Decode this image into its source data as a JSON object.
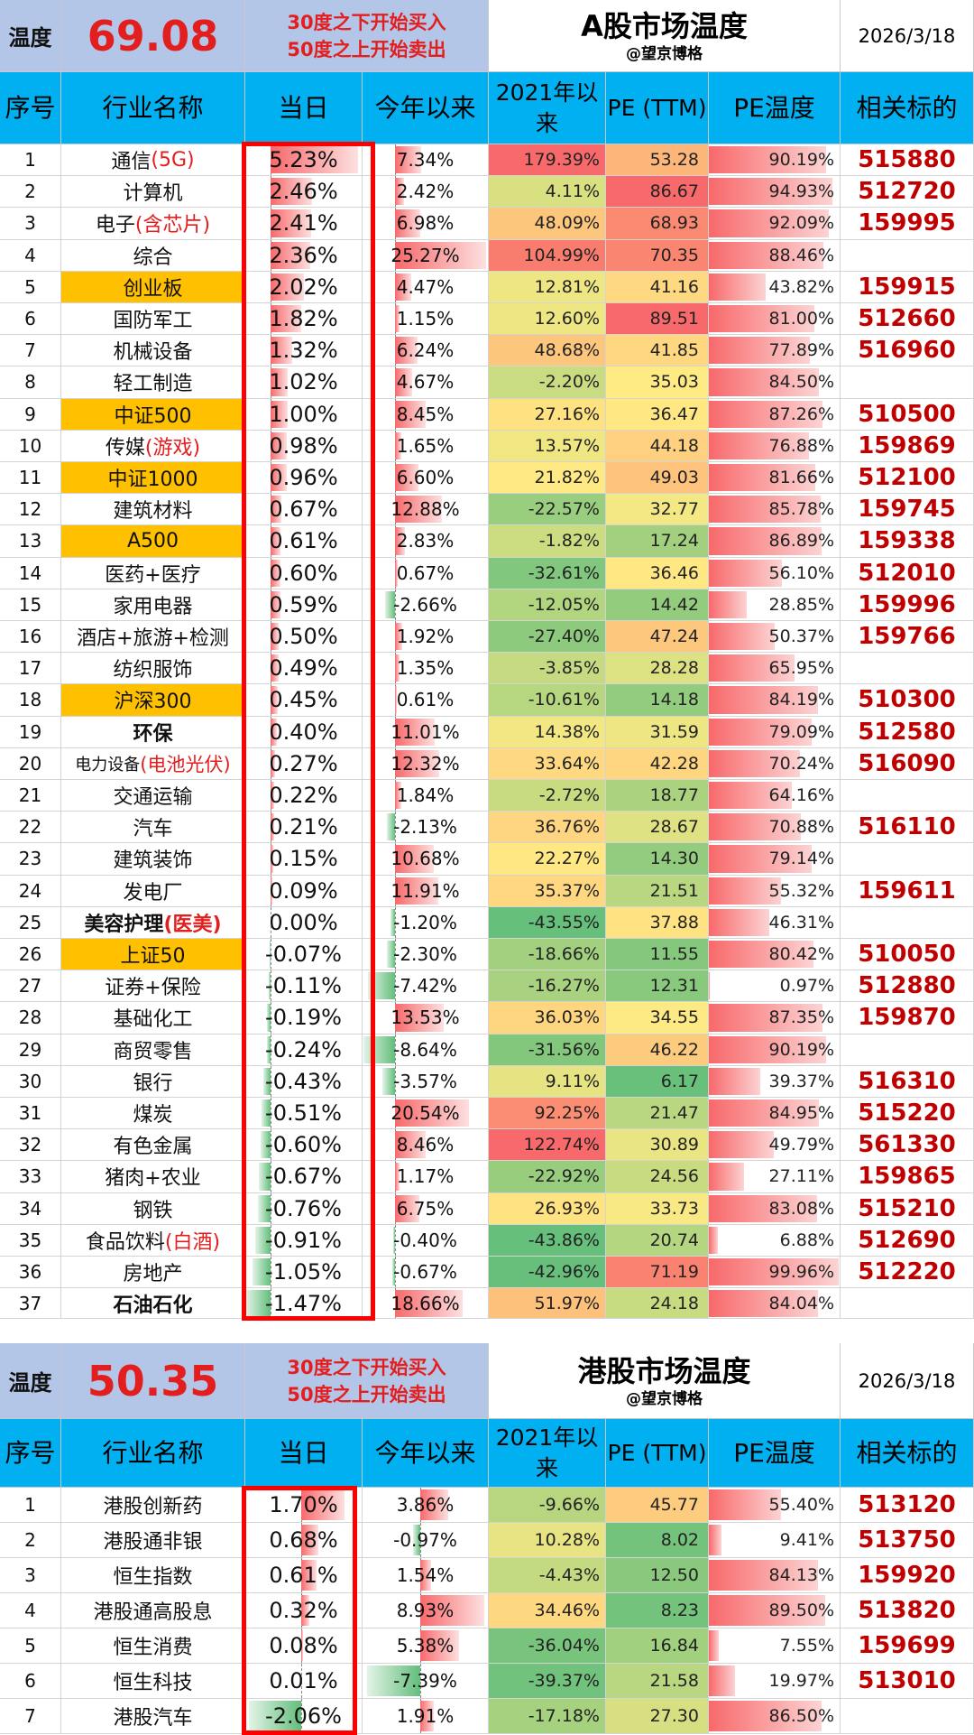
{
  "a_share": {
    "temp_label": "温度",
    "temp_value": "69.08",
    "rule_line1": "30度之下开始买入",
    "rule_line2": "50度之上开始卖出",
    "title": "A股市场温度",
    "subtitle": "@望京博格",
    "date": "2026/3/18",
    "columns": [
      "序号",
      "行业名称",
      "当日",
      "今年以来",
      "2021年以来",
      "PE (TTM)",
      "PE温度",
      "相关标的"
    ],
    "rows": [
      {
        "idx": "1",
        "name": "通信",
        "suffix": "(5G)",
        "hl": false,
        "bold": false,
        "today": "5.23%",
        "t": 5.23,
        "ytd": "7.34%",
        "y": 7.34,
        "s2021": "179.39%",
        "pe": "53.28",
        "pet": "90.19%",
        "p": 90.19,
        "code": "515880"
      },
      {
        "idx": "2",
        "name": "计算机",
        "suffix": "",
        "hl": false,
        "bold": false,
        "today": "2.46%",
        "t": 2.46,
        "ytd": "2.42%",
        "y": 2.42,
        "s2021": "4.11%",
        "pe": "86.67",
        "pet": "94.93%",
        "p": 94.93,
        "code": "512720"
      },
      {
        "idx": "3",
        "name": "电子",
        "suffix": "(含芯片)",
        "hl": false,
        "bold": false,
        "today": "2.41%",
        "t": 2.41,
        "ytd": "6.98%",
        "y": 6.98,
        "s2021": "48.09%",
        "pe": "68.93",
        "pet": "92.09%",
        "p": 92.09,
        "code": "159995"
      },
      {
        "idx": "4",
        "name": "综合",
        "suffix": "",
        "hl": false,
        "bold": false,
        "today": "2.36%",
        "t": 2.36,
        "ytd": "25.27%",
        "y": 25.27,
        "s2021": "104.99%",
        "pe": "70.35",
        "pet": "88.46%",
        "p": 88.46,
        "code": ""
      },
      {
        "idx": "5",
        "name": "创业板",
        "suffix": "",
        "hl": true,
        "bold": false,
        "today": "2.02%",
        "t": 2.02,
        "ytd": "4.47%",
        "y": 4.47,
        "s2021": "12.81%",
        "pe": "41.16",
        "pet": "43.82%",
        "p": 43.82,
        "code": "159915"
      },
      {
        "idx": "6",
        "name": "国防军工",
        "suffix": "",
        "hl": false,
        "bold": false,
        "today": "1.82%",
        "t": 1.82,
        "ytd": "1.15%",
        "y": 1.15,
        "s2021": "12.60%",
        "pe": "89.51",
        "pet": "81.00%",
        "p": 81.0,
        "code": "512660"
      },
      {
        "idx": "7",
        "name": "机械设备",
        "suffix": "",
        "hl": false,
        "bold": false,
        "today": "1.32%",
        "t": 1.32,
        "ytd": "6.24%",
        "y": 6.24,
        "s2021": "48.68%",
        "pe": "41.85",
        "pet": "77.89%",
        "p": 77.89,
        "code": "516960"
      },
      {
        "idx": "8",
        "name": "轻工制造",
        "suffix": "",
        "hl": false,
        "bold": false,
        "today": "1.02%",
        "t": 1.02,
        "ytd": "4.67%",
        "y": 4.67,
        "s2021": "-2.20%",
        "pe": "35.03",
        "pet": "84.50%",
        "p": 84.5,
        "code": ""
      },
      {
        "idx": "9",
        "name": "中证500",
        "suffix": "",
        "hl": true,
        "bold": false,
        "today": "1.00%",
        "t": 1.0,
        "ytd": "8.45%",
        "y": 8.45,
        "s2021": "27.16%",
        "pe": "36.47",
        "pet": "87.26%",
        "p": 87.26,
        "code": "510500"
      },
      {
        "idx": "10",
        "name": "传媒",
        "suffix": "(游戏)",
        "hl": false,
        "bold": false,
        "today": "0.98%",
        "t": 0.98,
        "ytd": "1.65%",
        "y": 1.65,
        "s2021": "13.57%",
        "pe": "44.18",
        "pet": "76.88%",
        "p": 76.88,
        "code": "159869"
      },
      {
        "idx": "11",
        "name": "中证1000",
        "suffix": "",
        "hl": true,
        "bold": false,
        "today": "0.96%",
        "t": 0.96,
        "ytd": "6.60%",
        "y": 6.6,
        "s2021": "21.82%",
        "pe": "49.03",
        "pet": "81.66%",
        "p": 81.66,
        "code": "512100"
      },
      {
        "idx": "12",
        "name": "建筑材料",
        "suffix": "",
        "hl": false,
        "bold": false,
        "today": "0.67%",
        "t": 0.67,
        "ytd": "12.88%",
        "y": 12.88,
        "s2021": "-22.57%",
        "pe": "32.77",
        "pet": "85.78%",
        "p": 85.78,
        "code": "159745"
      },
      {
        "idx": "13",
        "name": "A500",
        "suffix": "",
        "hl": true,
        "bold": false,
        "today": "0.61%",
        "t": 0.61,
        "ytd": "2.83%",
        "y": 2.83,
        "s2021": "-1.82%",
        "pe": "17.24",
        "pet": "86.89%",
        "p": 86.89,
        "code": "159338"
      },
      {
        "idx": "14",
        "name": "医药+医疗",
        "suffix": "",
        "hl": false,
        "bold": false,
        "today": "0.60%",
        "t": 0.6,
        "ytd": "0.67%",
        "y": 0.67,
        "s2021": "-32.61%",
        "pe": "36.46",
        "pet": "56.10%",
        "p": 56.1,
        "code": "512010"
      },
      {
        "idx": "15",
        "name": "家用电器",
        "suffix": "",
        "hl": false,
        "bold": false,
        "today": "0.59%",
        "t": 0.59,
        "ytd": "-2.66%",
        "y": -2.66,
        "s2021": "-12.05%",
        "pe": "14.42",
        "pet": "28.85%",
        "p": 28.85,
        "code": "159996"
      },
      {
        "idx": "16",
        "name": "酒店+旅游+检测",
        "suffix": "",
        "hl": false,
        "bold": false,
        "today": "0.50%",
        "t": 0.5,
        "ytd": "1.92%",
        "y": 1.92,
        "s2021": "-27.40%",
        "pe": "47.24",
        "pet": "50.37%",
        "p": 50.37,
        "code": "159766"
      },
      {
        "idx": "17",
        "name": "纺织服饰",
        "suffix": "",
        "hl": false,
        "bold": false,
        "today": "0.49%",
        "t": 0.49,
        "ytd": "1.35%",
        "y": 1.35,
        "s2021": "-3.85%",
        "pe": "28.28",
        "pet": "65.95%",
        "p": 65.95,
        "code": ""
      },
      {
        "idx": "18",
        "name": "沪深300",
        "suffix": "",
        "hl": true,
        "bold": false,
        "today": "0.45%",
        "t": 0.45,
        "ytd": "0.61%",
        "y": 0.61,
        "s2021": "-10.61%",
        "pe": "14.18",
        "pet": "84.19%",
        "p": 84.19,
        "code": "510300"
      },
      {
        "idx": "19",
        "name": "环保",
        "suffix": "",
        "hl": false,
        "bold": true,
        "today": "0.40%",
        "t": 0.4,
        "ytd": "11.01%",
        "y": 11.01,
        "s2021": "14.38%",
        "pe": "31.59",
        "pet": "79.09%",
        "p": 79.09,
        "code": "512580"
      },
      {
        "idx": "20",
        "name": "电力设备",
        "suffix": "(电池光伏)",
        "hl": false,
        "bold": false,
        "small": true,
        "today": "0.27%",
        "t": 0.27,
        "ytd": "12.32%",
        "y": 12.32,
        "s2021": "33.64%",
        "pe": "42.28",
        "pet": "70.24%",
        "p": 70.24,
        "code": "516090"
      },
      {
        "idx": "21",
        "name": "交通运输",
        "suffix": "",
        "hl": false,
        "bold": false,
        "today": "0.22%",
        "t": 0.22,
        "ytd": "1.84%",
        "y": 1.84,
        "s2021": "-2.72%",
        "pe": "18.77",
        "pet": "64.16%",
        "p": 64.16,
        "code": ""
      },
      {
        "idx": "22",
        "name": "汽车",
        "suffix": "",
        "hl": false,
        "bold": false,
        "today": "0.21%",
        "t": 0.21,
        "ytd": "-2.13%",
        "y": -2.13,
        "s2021": "36.76%",
        "pe": "28.67",
        "pet": "70.88%",
        "p": 70.88,
        "code": "516110"
      },
      {
        "idx": "23",
        "name": "建筑装饰",
        "suffix": "",
        "hl": false,
        "bold": false,
        "today": "0.15%",
        "t": 0.15,
        "ytd": "10.68%",
        "y": 10.68,
        "s2021": "22.27%",
        "pe": "14.30",
        "pet": "79.14%",
        "p": 79.14,
        "code": ""
      },
      {
        "idx": "24",
        "name": "发电厂",
        "suffix": "",
        "hl": false,
        "bold": false,
        "today": "0.09%",
        "t": 0.09,
        "ytd": "11.91%",
        "y": 11.91,
        "s2021": "35.37%",
        "pe": "21.51",
        "pet": "55.32%",
        "p": 55.32,
        "code": "159611"
      },
      {
        "idx": "25",
        "name": "美容护理",
        "suffix": "(医美)",
        "hl": false,
        "bold": true,
        "today": "0.00%",
        "t": 0.0,
        "ytd": "-1.20%",
        "y": -1.2,
        "s2021": "-43.55%",
        "pe": "37.88",
        "pet": "46.31%",
        "p": 46.31,
        "code": ""
      },
      {
        "idx": "26",
        "name": "上证50",
        "suffix": "",
        "hl": true,
        "bold": false,
        "today": "-0.07%",
        "t": -0.07,
        "ytd": "-2.30%",
        "y": -2.3,
        "s2021": "-18.66%",
        "pe": "11.55",
        "pet": "80.42%",
        "p": 80.42,
        "code": "510050"
      },
      {
        "idx": "27",
        "name": "证券+保险",
        "suffix": "",
        "hl": false,
        "bold": false,
        "today": "-0.11%",
        "t": -0.11,
        "ytd": "-7.42%",
        "y": -7.42,
        "s2021": "-16.27%",
        "pe": "12.31",
        "pet": "0.97%",
        "p": 0.97,
        "code": "512880"
      },
      {
        "idx": "28",
        "name": "基础化工",
        "suffix": "",
        "hl": false,
        "bold": false,
        "today": "-0.19%",
        "t": -0.19,
        "ytd": "13.53%",
        "y": 13.53,
        "s2021": "36.03%",
        "pe": "34.55",
        "pet": "87.35%",
        "p": 87.35,
        "code": "159870"
      },
      {
        "idx": "29",
        "name": "商贸零售",
        "suffix": "",
        "hl": false,
        "bold": false,
        "today": "-0.24%",
        "t": -0.24,
        "ytd": "-8.64%",
        "y": -8.64,
        "s2021": "-31.56%",
        "pe": "46.22",
        "pet": "90.19%",
        "p": 90.19,
        "code": ""
      },
      {
        "idx": "30",
        "name": "银行",
        "suffix": "",
        "hl": false,
        "bold": false,
        "today": "-0.43%",
        "t": -0.43,
        "ytd": "-3.57%",
        "y": -3.57,
        "s2021": "9.11%",
        "pe": "6.17",
        "pet": "39.37%",
        "p": 39.37,
        "code": "516310"
      },
      {
        "idx": "31",
        "name": "煤炭",
        "suffix": "",
        "hl": false,
        "bold": false,
        "today": "-0.51%",
        "t": -0.51,
        "ytd": "20.54%",
        "y": 20.54,
        "s2021": "92.25%",
        "pe": "21.47",
        "pet": "84.95%",
        "p": 84.95,
        "code": "515220"
      },
      {
        "idx": "32",
        "name": "有色金属",
        "suffix": "",
        "hl": false,
        "bold": false,
        "today": "-0.60%",
        "t": -0.6,
        "ytd": "8.46%",
        "y": 8.46,
        "s2021": "122.74%",
        "pe": "30.89",
        "pet": "49.79%",
        "p": 49.79,
        "code": "561330"
      },
      {
        "idx": "33",
        "name": "猪肉+农业",
        "suffix": "",
        "hl": false,
        "bold": false,
        "today": "-0.67%",
        "t": -0.67,
        "ytd": "1.17%",
        "y": 1.17,
        "s2021": "-22.92%",
        "pe": "24.56",
        "pet": "27.11%",
        "p": 27.11,
        "code": "159865"
      },
      {
        "idx": "34",
        "name": "钢铁",
        "suffix": "",
        "hl": false,
        "bold": false,
        "today": "-0.76%",
        "t": -0.76,
        "ytd": "6.75%",
        "y": 6.75,
        "s2021": "26.93%",
        "pe": "33.73",
        "pet": "83.08%",
        "p": 83.08,
        "code": "515210"
      },
      {
        "idx": "35",
        "name": "食品饮料",
        "suffix": "(白酒)",
        "hl": false,
        "bold": false,
        "today": "-0.91%",
        "t": -0.91,
        "ytd": "-0.40%",
        "y": -0.4,
        "s2021": "-43.86%",
        "pe": "20.74",
        "pet": "6.88%",
        "p": 6.88,
        "code": "512690"
      },
      {
        "idx": "36",
        "name": "房地产",
        "suffix": "",
        "hl": false,
        "bold": false,
        "today": "-1.05%",
        "t": -1.05,
        "ytd": "-0.67%",
        "y": -0.67,
        "s2021": "-42.96%",
        "pe": "71.19",
        "pet": "99.96%",
        "p": 99.96,
        "code": "512220"
      },
      {
        "idx": "37",
        "name": "石油石化",
        "suffix": "",
        "hl": false,
        "bold": true,
        "today": "-1.47%",
        "t": -1.47,
        "ytd": "18.66%",
        "y": 18.66,
        "s2021": "51.97%",
        "pe": "24.18",
        "pet": "84.04%",
        "p": 84.04,
        "code": ""
      }
    ]
  },
  "hk_share": {
    "temp_label": "温度",
    "temp_value": "50.35",
    "rule_line1": "30度之下开始买入",
    "rule_line2": "50度之上开始卖出",
    "title": "港股市场温度",
    "subtitle": "@望京博格",
    "date": "2026/3/18",
    "columns": [
      "序号",
      "行业名称",
      "当日",
      "今年以来",
      "2021年以来",
      "PE (TTM)",
      "PE温度",
      "相关标的"
    ],
    "rows": [
      {
        "idx": "1",
        "name": "港股创新药",
        "suffix": "",
        "hl": false,
        "bold": false,
        "today": "1.70%",
        "t": 1.7,
        "ytd": "3.86%",
        "y": 3.86,
        "s2021": "-9.66%",
        "pe": "45.77",
        "pet": "55.40%",
        "p": 55.4,
        "code": "513120"
      },
      {
        "idx": "2",
        "name": "港股通非银",
        "suffix": "",
        "hl": false,
        "bold": false,
        "today": "0.68%",
        "t": 0.68,
        "ytd": "-0.97%",
        "y": -0.97,
        "s2021": "10.28%",
        "pe": "8.02",
        "pet": "9.41%",
        "p": 9.41,
        "code": "513750"
      },
      {
        "idx": "3",
        "name": "恒生指数",
        "suffix": "",
        "hl": false,
        "bold": false,
        "today": "0.61%",
        "t": 0.61,
        "ytd": "1.54%",
        "y": 1.54,
        "s2021": "-4.43%",
        "pe": "12.50",
        "pet": "84.13%",
        "p": 84.13,
        "code": "159920"
      },
      {
        "idx": "4",
        "name": "港股通高股息",
        "suffix": "",
        "hl": false,
        "bold": false,
        "today": "0.32%",
        "t": 0.32,
        "ytd": "8.93%",
        "y": 8.93,
        "s2021": "34.46%",
        "pe": "8.23",
        "pet": "89.50%",
        "p": 89.5,
        "code": "513820"
      },
      {
        "idx": "5",
        "name": "恒生消费",
        "suffix": "",
        "hl": false,
        "bold": false,
        "today": "0.08%",
        "t": 0.08,
        "ytd": "5.38%",
        "y": 5.38,
        "s2021": "-36.04%",
        "pe": "16.84",
        "pet": "7.55%",
        "p": 7.55,
        "code": "159699"
      },
      {
        "idx": "6",
        "name": "恒生科技",
        "suffix": "",
        "hl": false,
        "bold": false,
        "today": "0.01%",
        "t": 0.01,
        "ytd": "-7.39%",
        "y": -7.39,
        "s2021": "-39.37%",
        "pe": "21.58",
        "pet": "19.97%",
        "p": 19.97,
        "code": "513010"
      },
      {
        "idx": "7",
        "name": "港股汽车",
        "suffix": "",
        "hl": false,
        "bold": false,
        "today": "-2.06%",
        "t": -2.06,
        "ytd": "1.91%",
        "y": 1.91,
        "s2021": "-17.18%",
        "pe": "27.30",
        "pet": "86.50%",
        "p": 86.5,
        "code": ""
      }
    ]
  }
}
